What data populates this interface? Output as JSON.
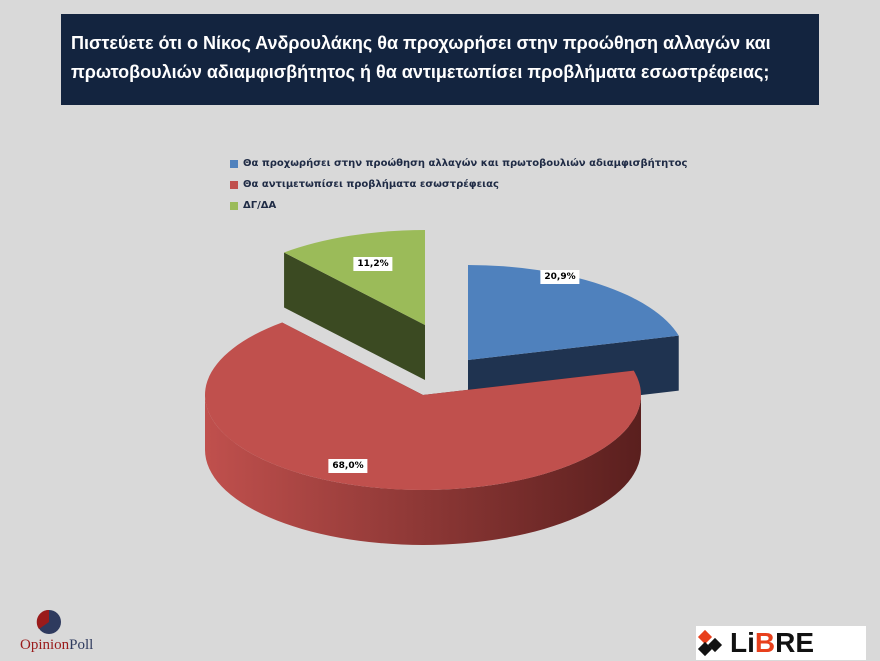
{
  "chart_data": {
    "type": "pie",
    "title": "Πιστεύετε ότι ο Νίκος Ανδρουλάκης θα προχωρήσει στην προώθηση αλλαγών και πρωτοβουλιών αδιαμφισβήτητος ή θα αντιμετωπίσει προβλήματα εσωστρέφειας;",
    "three_d": true,
    "legend_position": "top",
    "series": [
      {
        "name": "Θα προχωρήσει στην προώθηση αλλαγών και πρωτοβουλιών αδιαμφισβήτητος",
        "value": 20.9,
        "label": "20,9%",
        "color": "#4f81bd"
      },
      {
        "name": "Θα αντιμετωπίσει προβλήματα εσωστρέφειας",
        "value": 68.0,
        "label": "68,0%",
        "color": "#c0504d"
      },
      {
        "name": "ΔΓ/ΔΑ",
        "value": 11.2,
        "label": "11,2%",
        "color": "#9bbb59"
      }
    ]
  },
  "logos": {
    "left": "OpinionPoll",
    "right": "LiBRE"
  }
}
